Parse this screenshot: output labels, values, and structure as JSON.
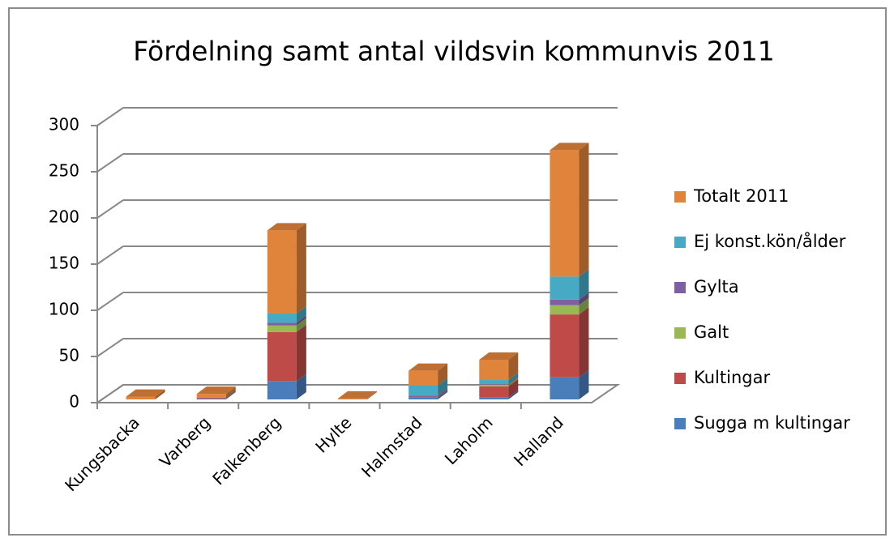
{
  "chart_data": {
    "type": "bar3d_stacked",
    "title": "Fördelning samt antal vildsvin kommunvis 2011",
    "categories": [
      "Kungsbacka",
      "Varberg",
      "Falkenberg",
      "Hylte",
      "Halmstad",
      "Laholm",
      "Halland"
    ],
    "series": [
      {
        "name": "Sugga m kultingar",
        "color": "#4a7ebb",
        "values": [
          0,
          1,
          20,
          0,
          2,
          2,
          24
        ]
      },
      {
        "name": "Kultingar",
        "color": "#be4b48",
        "values": [
          0,
          1,
          53,
          0,
          1,
          12,
          68
        ]
      },
      {
        "name": "Galt",
        "color": "#98b954",
        "values": [
          0,
          0,
          7,
          0,
          0,
          2,
          10
        ]
      },
      {
        "name": "Gylta",
        "color": "#7d60a0",
        "values": [
          0,
          0,
          3,
          0,
          1,
          1,
          6
        ]
      },
      {
        "name": "Ej konst.kön/ålder",
        "color": "#46aac5",
        "values": [
          0,
          0,
          10,
          0,
          11,
          4,
          25
        ]
      },
      {
        "name": "Totalt 2011",
        "color": "#e0843c",
        "values": [
          3,
          4,
          90,
          1,
          16,
          22,
          137
        ]
      }
    ],
    "ylim": [
      0,
      300
    ],
    "yticks": [
      0,
      50,
      100,
      150,
      200,
      250,
      300
    ],
    "grid": true,
    "legend": "right"
  }
}
